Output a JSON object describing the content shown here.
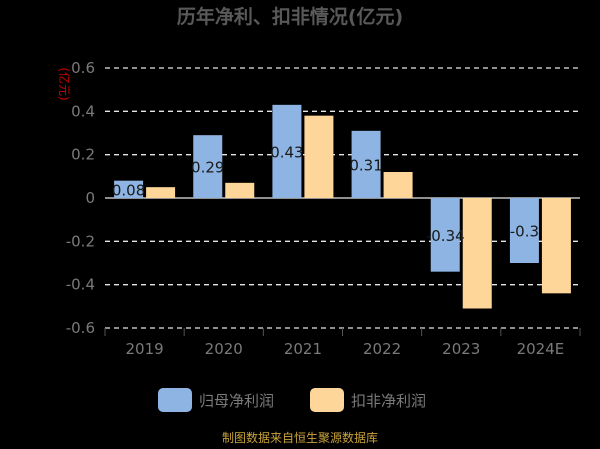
{
  "chart_data": {
    "type": "bar",
    "title": "历年净利、扣非情况(亿元)",
    "unit_label": "(亿元)",
    "categories": [
      "2019",
      "2020",
      "2021",
      "2022",
      "2023",
      "2024E"
    ],
    "series": [
      {
        "name": "归母净利润",
        "color": "#8eb4e3",
        "values": [
          0.08,
          0.29,
          0.43,
          0.31,
          -0.34,
          -0.3
        ],
        "labels": [
          "0.08",
          "0.29",
          "0.43",
          "0.31",
          "-0.34",
          "-0.3"
        ]
      },
      {
        "name": "扣非净利润",
        "color": "#ffd699",
        "values": [
          0.05,
          0.07,
          0.38,
          0.12,
          -0.51,
          -0.44
        ]
      }
    ],
    "yticks": [
      "0.6",
      "0.4",
      "0.2",
      "0",
      "-0.2",
      "-0.4",
      "-0.6"
    ],
    "ytick_values": [
      0.6,
      0.4,
      0.2,
      0,
      -0.2,
      -0.4,
      -0.6
    ],
    "ylim": [
      -0.6,
      0.6
    ],
    "grid": true,
    "legend_position": "bottom",
    "source": "制图数据来自恒生聚源数据库"
  }
}
